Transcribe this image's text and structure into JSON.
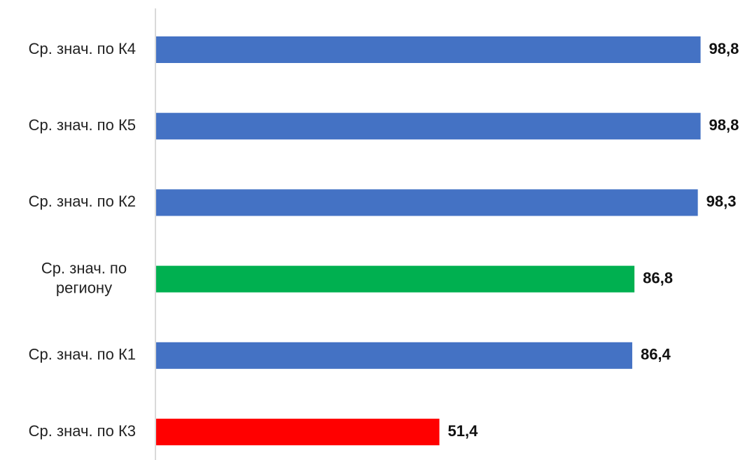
{
  "chart_data": {
    "type": "bar",
    "orientation": "horizontal",
    "categories": [
      "Ср. знач. по К4",
      "Ср. знач. по К5",
      "Ср. знач. по К2",
      "Ср. знач. по региону",
      "Ср. знач. по К1",
      "Ср. знач. по К3"
    ],
    "category_lines": [
      [
        "Ср. знач. по К4"
      ],
      [
        "Ср. знач. по К5"
      ],
      [
        "Ср. знач. по К2"
      ],
      [
        "Ср. знач. по",
        "региону"
      ],
      [
        "Ср. знач. по К1"
      ],
      [
        "Ср. знач. по К3"
      ]
    ],
    "values": [
      98.8,
      98.8,
      98.3,
      86.8,
      86.4,
      51.4
    ],
    "value_labels": [
      "98,8",
      "98,8",
      "98,3",
      "86,8",
      "86,4",
      "51,4"
    ],
    "bar_colors": [
      "#4472C4",
      "#4472C4",
      "#4472C4",
      "#00B050",
      "#4472C4",
      "#FF0000"
    ],
    "xlim": [
      0,
      100
    ],
    "grid": false,
    "legend": "none",
    "title": "",
    "xlabel": "",
    "ylabel": ""
  },
  "colors": {
    "axis": "#D9D9D9",
    "category_text": "#222222",
    "value_text": "#111111"
  }
}
